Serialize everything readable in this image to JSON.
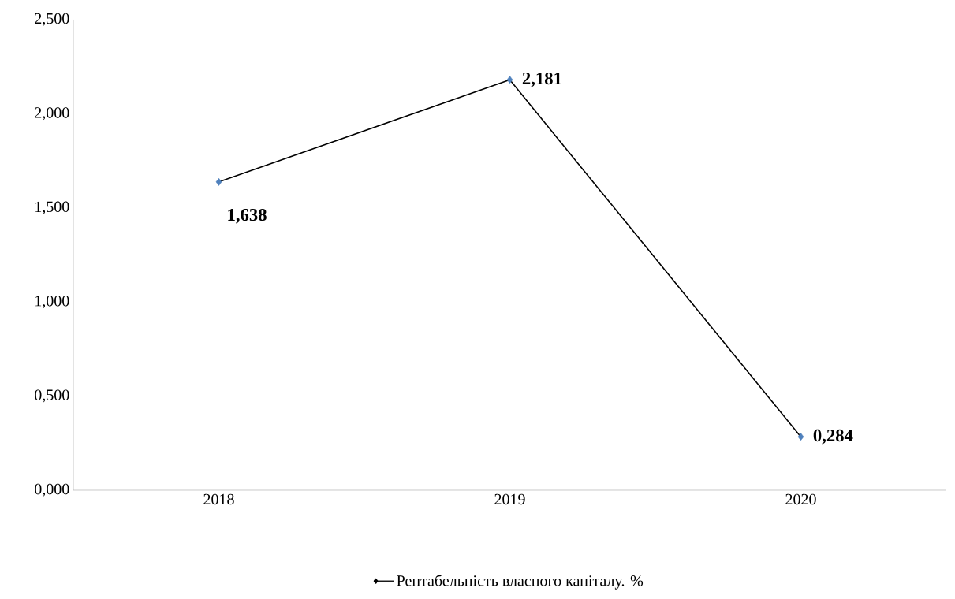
{
  "chart_data": {
    "type": "line",
    "categories": [
      "2018",
      "2019",
      "2020"
    ],
    "series": [
      {
        "name": "Рентабельність власного капіталу. %",
        "color": "#000000",
        "colors": [
          "#4f81bd",
          "#4f81bd",
          "#4f81bd"
        ],
        "values": [
          1.638,
          2.181,
          0.284
        ],
        "value_labels": [
          "1,638",
          "2,181",
          "0,284"
        ]
      }
    ],
    "ylim": [
      0,
      2.5
    ],
    "yticks": [
      {
        "value": 0,
        "label": "0,000"
      },
      {
        "value": 0.5,
        "label": "0,500"
      },
      {
        "value": 1,
        "label": "1,000"
      },
      {
        "value": 1.5,
        "label": "1,500"
      },
      {
        "value": 2,
        "label": "2,000"
      },
      {
        "value": 2.5,
        "label": "2,500"
      }
    ],
    "legend": "bottom",
    "marker": "diamond",
    "line_style": "solid",
    "grid": false
  }
}
